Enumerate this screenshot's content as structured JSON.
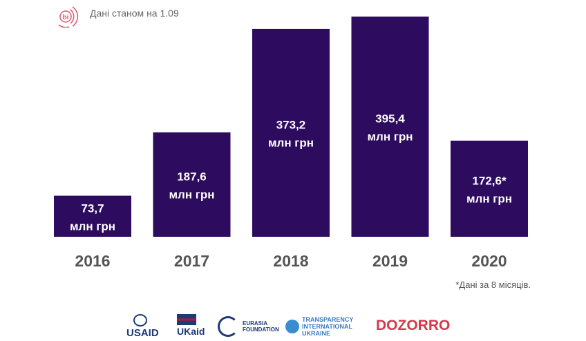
{
  "header": {
    "logo_text": "bi",
    "as_of": "Дані станом на 1.09"
  },
  "chart_data": {
    "type": "bar",
    "categories": [
      "2016",
      "2017",
      "2018",
      "2019",
      "2020"
    ],
    "values": [
      73.7,
      187.6,
      373.2,
      395.4,
      172.6
    ],
    "data_labels": [
      [
        "73,7",
        "млн грн"
      ],
      [
        "187,6",
        "млн грн"
      ],
      [
        "373,2",
        "млн грн"
      ],
      [
        "395,4",
        "млн грн"
      ],
      [
        "172,6*",
        "млн грн"
      ]
    ],
    "title": "",
    "xlabel": "",
    "ylabel": "",
    "ylim": [
      0,
      395.4
    ],
    "grid": false,
    "bar_color": "#2d0b5e"
  },
  "footnote": "*Дані за 8 місяців.",
  "partners": [
    "USAID",
    "UKaid",
    "Eurasia Foundation",
    "Transparency International Ukraine",
    "DOZORRO"
  ]
}
